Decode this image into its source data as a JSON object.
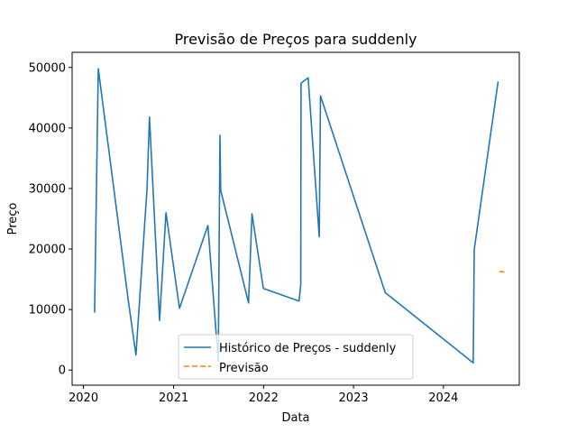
{
  "chart_data": {
    "type": "line",
    "title": "Previsão de Preços para suddenly",
    "xlabel": "Data",
    "ylabel": "Preço",
    "x_axis_type": "date",
    "xlim": [
      "2019-11-16",
      "2024-11-04"
    ],
    "ylim": [
      -2500,
      52500
    ],
    "x_ticks": [
      "2020-01-01",
      "2021-01-01",
      "2022-01-01",
      "2023-01-01",
      "2024-01-01"
    ],
    "x_tick_labels": [
      "2020",
      "2021",
      "2022",
      "2023",
      "2024"
    ],
    "y_ticks": [
      0,
      10000,
      20000,
      30000,
      40000,
      50000
    ],
    "y_tick_labels": [
      "0",
      "10000",
      "20000",
      "30000",
      "40000",
      "50000"
    ],
    "grid": false,
    "legend_position": "lower-center",
    "series": [
      {
        "name": "Histórico de Preços - suddenly",
        "color": "#1f77b4",
        "style": "solid",
        "points": [
          {
            "x": "2020-02-15",
            "y": 9500
          },
          {
            "x": "2020-03-01",
            "y": 49800
          },
          {
            "x": "2020-07-01",
            "y": 11500
          },
          {
            "x": "2020-08-01",
            "y": 2500
          },
          {
            "x": "2020-09-15",
            "y": 30000
          },
          {
            "x": "2020-09-25",
            "y": 41800
          },
          {
            "x": "2020-11-05",
            "y": 8200
          },
          {
            "x": "2020-12-01",
            "y": 26000
          },
          {
            "x": "2021-01-25",
            "y": 10200
          },
          {
            "x": "2021-05-20",
            "y": 23900
          },
          {
            "x": "2021-07-01",
            "y": 1500
          },
          {
            "x": "2021-07-08",
            "y": 38800
          },
          {
            "x": "2021-07-11",
            "y": 29700
          },
          {
            "x": "2021-11-01",
            "y": 11100
          },
          {
            "x": "2021-11-15",
            "y": 25800
          },
          {
            "x": "2021-12-31",
            "y": 13500
          },
          {
            "x": "2022-05-25",
            "y": 11400
          },
          {
            "x": "2022-06-01",
            "y": 14100
          },
          {
            "x": "2022-06-02",
            "y": 47400
          },
          {
            "x": "2022-07-01",
            "y": 48300
          },
          {
            "x": "2022-08-15",
            "y": 22000
          },
          {
            "x": "2022-08-20",
            "y": 45300
          },
          {
            "x": "2023-05-10",
            "y": 12800
          },
          {
            "x": "2024-05-01",
            "y": 1200
          },
          {
            "x": "2024-05-05",
            "y": 19900
          },
          {
            "x": "2024-08-10",
            "y": 47700
          }
        ]
      },
      {
        "name": "Previsão",
        "color": "#ff7f0e",
        "style": "dashed",
        "points": [
          {
            "x": "2024-08-15",
            "y": 16300
          },
          {
            "x": "2024-09-05",
            "y": 16200
          }
        ]
      }
    ]
  }
}
